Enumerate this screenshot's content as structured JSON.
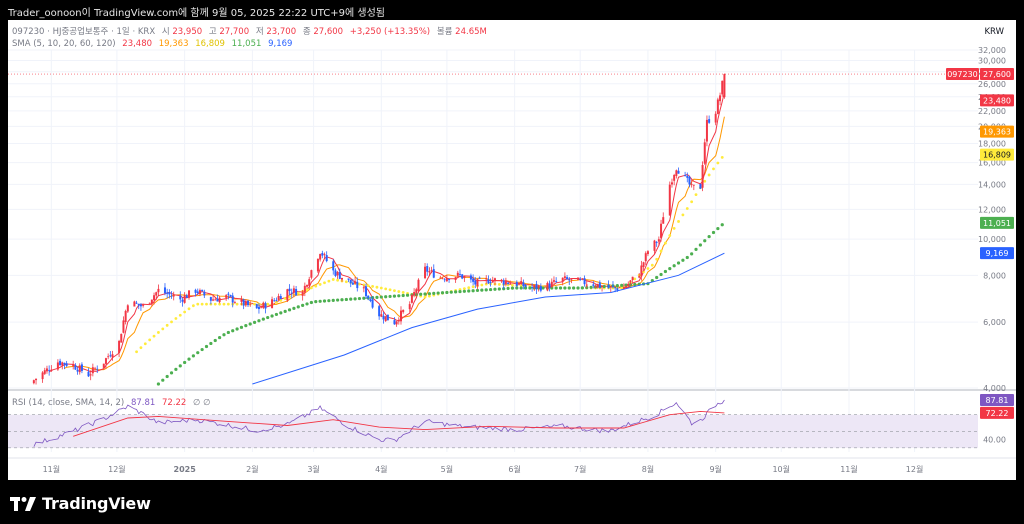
{
  "header": {
    "caption": "Trader_oonoon이 TradingView.com에 함께 9월 05, 2025 22:22 UTC+9에 생성됨"
  },
  "legend": {
    "symbol": "097230",
    "name": "HJ중공업보통주",
    "interval": "1일",
    "exchange": "KRX",
    "open_label": "시",
    "open": "23,950",
    "high_label": "고",
    "high": "27,700",
    "low_label": "저",
    "low": "23,700",
    "close_label": "종",
    "close": "27,600",
    "change": "+3,250 (+13.35%)",
    "volume_label": "볼륨",
    "volume": "24.65M",
    "sma_label": "SMA (5, 10, 20, 60, 120)",
    "sma_values": [
      "23,480",
      "19,363",
      "16,809",
      "11,051",
      "9,169"
    ],
    "rsi_label": "RSI (14, close, SMA, 14, 2)",
    "rsi_values": [
      "87.81",
      "72.22"
    ],
    "rsi_extra": "∅ ∅"
  },
  "currency": "KRW",
  "colors": {
    "up": "#f23645",
    "down": "#2962ff",
    "sma5": "#f23645",
    "sma10": "#ff9800",
    "sma20": "#ffeb3b",
    "sma60": "#4caf50",
    "sma120": "#2962ff",
    "rsi": "#7e57c2",
    "rsi_ma": "#f23645",
    "rsi_band": "#ede7f6"
  },
  "chart_data": {
    "type": "line",
    "y_scale": "log",
    "ylim": [
      4000,
      32000
    ],
    "y_ticks": [
      "4,000",
      "6,000",
      "8,000",
      "10,000",
      "12,000",
      "14,000",
      "16,000",
      "18,000",
      "20,000",
      "22,000",
      "24,000",
      "26,000",
      "28,000",
      "30,000",
      "32,000"
    ],
    "x_ticks": [
      "11월",
      "12월",
      "2025",
      "2월",
      "3월",
      "4월",
      "5월",
      "6월",
      "7월",
      "8월",
      "9월",
      "10월",
      "11월",
      "12월"
    ],
    "price_labels": [
      {
        "text": "097230",
        "badge": "27,600",
        "color": "#f23645"
      },
      {
        "text": "",
        "badge": "23,480",
        "color": "#f23645"
      },
      {
        "text": "",
        "badge": "19,363",
        "color": "#ff9800"
      },
      {
        "text": "",
        "badge": "16,809",
        "color": "#ffeb3b"
      },
      {
        "text": "",
        "badge": "11,051",
        "color": "#4caf50"
      },
      {
        "text": "",
        "badge": "9,169",
        "color": "#2962ff"
      }
    ],
    "price_label_values": [
      27600,
      23480,
      19363,
      16809,
      11051,
      9169
    ],
    "close_series": [
      [
        "2024-10-24",
        4200
      ],
      [
        "2024-11-04",
        4700
      ],
      [
        "2024-11-11",
        4600
      ],
      [
        "2024-11-18",
        4350
      ],
      [
        "2024-11-25",
        4700
      ],
      [
        "2024-12-02",
        5300
      ],
      [
        "2024-12-06",
        6800
      ],
      [
        "2024-12-13",
        6600
      ],
      [
        "2024-12-20",
        7300
      ],
      [
        "2024-12-30",
        6900
      ],
      [
        "2025-01-06",
        7300
      ],
      [
        "2025-01-13",
        6900
      ],
      [
        "2025-01-20",
        7000
      ],
      [
        "2025-02-03",
        6500
      ],
      [
        "2025-02-10",
        6800
      ],
      [
        "2025-02-17",
        7300
      ],
      [
        "2025-02-24",
        7200
      ],
      [
        "2025-03-04",
        9300
      ],
      [
        "2025-03-10",
        8200
      ],
      [
        "2025-03-17",
        7700
      ],
      [
        "2025-03-24",
        7300
      ],
      [
        "2025-03-31",
        6300
      ],
      [
        "2025-04-07",
        6000
      ],
      [
        "2025-04-14",
        6700
      ],
      [
        "2025-04-21",
        8300
      ],
      [
        "2025-04-28",
        7900
      ],
      [
        "2025-05-07",
        8000
      ],
      [
        "2025-05-14",
        7600
      ],
      [
        "2025-05-21",
        7800
      ],
      [
        "2025-06-02",
        7600
      ],
      [
        "2025-06-09",
        7400
      ],
      [
        "2025-06-16",
        7500
      ],
      [
        "2025-06-23",
        7800
      ],
      [
        "2025-06-30",
        7700
      ],
      [
        "2025-07-07",
        7600
      ],
      [
        "2025-07-14",
        7400
      ],
      [
        "2025-07-21",
        7400
      ],
      [
        "2025-07-28",
        8100
      ],
      [
        "2025-08-01",
        9300
      ],
      [
        "2025-08-06",
        10000
      ],
      [
        "2025-08-11",
        14000
      ],
      [
        "2025-08-14",
        15600
      ],
      [
        "2025-08-18",
        14500
      ],
      [
        "2025-08-21",
        13700
      ],
      [
        "2025-08-25",
        13800
      ],
      [
        "2025-08-28",
        20500
      ],
      [
        "2025-09-01",
        22000
      ],
      [
        "2025-09-03",
        24300
      ],
      [
        "2025-09-05",
        27600
      ]
    ],
    "sma20_series": [
      [
        "2024-12-10",
        5000
      ],
      [
        "2025-01-06",
        6700
      ],
      [
        "2025-02-10",
        6700
      ],
      [
        "2025-03-10",
        7800
      ],
      [
        "2025-04-01",
        7400
      ],
      [
        "2025-04-21",
        7000
      ],
      [
        "2025-05-20",
        7600
      ],
      [
        "2025-06-20",
        7400
      ],
      [
        "2025-07-21",
        7400
      ],
      [
        "2025-08-04",
        8600
      ],
      [
        "2025-08-20",
        12300
      ],
      [
        "2025-09-05",
        16809
      ]
    ],
    "sma60_series": [
      [
        "2024-12-20",
        4100
      ],
      [
        "2025-01-20",
        5600
      ],
      [
        "2025-03-01",
        6800
      ],
      [
        "2025-04-01",
        7000
      ],
      [
        "2025-05-01",
        7200
      ],
      [
        "2025-06-01",
        7400
      ],
      [
        "2025-07-01",
        7400
      ],
      [
        "2025-08-01",
        7600
      ],
      [
        "2025-08-20",
        9000
      ],
      [
        "2025-09-05",
        11051
      ]
    ],
    "sma120_series": [
      [
        "2025-02-01",
        4100
      ],
      [
        "2025-03-15",
        4900
      ],
      [
        "2025-04-15",
        5800
      ],
      [
        "2025-05-15",
        6500
      ],
      [
        "2025-06-15",
        7000
      ],
      [
        "2025-07-15",
        7200
      ],
      [
        "2025-08-15",
        8000
      ],
      [
        "2025-09-05",
        9169
      ]
    ],
    "rsi_ticks": [
      "87.81",
      "72.22",
      "40.00"
    ],
    "rsi_series": [
      [
        "2024-10-24",
        34
      ],
      [
        "2024-11-11",
        50
      ],
      [
        "2024-11-25",
        65
      ],
      [
        "2024-12-06",
        80
      ],
      [
        "2024-12-13",
        71
      ],
      [
        "2024-12-20",
        60
      ],
      [
        "2025-01-06",
        64
      ],
      [
        "2025-01-20",
        58
      ],
      [
        "2025-02-03",
        51
      ],
      [
        "2025-02-17",
        58
      ],
      [
        "2025-03-04",
        78
      ],
      [
        "2025-03-17",
        56
      ],
      [
        "2025-03-31",
        40
      ],
      [
        "2025-04-07",
        39
      ],
      [
        "2025-04-21",
        62
      ],
      [
        "2025-05-07",
        56
      ],
      [
        "2025-06-02",
        52
      ],
      [
        "2025-06-23",
        56
      ],
      [
        "2025-07-14",
        50
      ],
      [
        "2025-08-04",
        69
      ],
      [
        "2025-08-14",
        85
      ],
      [
        "2025-08-21",
        60
      ],
      [
        "2025-08-25",
        63
      ],
      [
        "2025-09-01",
        82
      ],
      [
        "2025-09-05",
        87.81
      ]
    ],
    "rsi_ma_series": [
      [
        "2024-11-11",
        44
      ],
      [
        "2024-12-06",
        66
      ],
      [
        "2024-12-20",
        68
      ],
      [
        "2025-01-20",
        62
      ],
      [
        "2025-02-17",
        57
      ],
      [
        "2025-03-10",
        64
      ],
      [
        "2025-03-31",
        55
      ],
      [
        "2025-04-21",
        52
      ],
      [
        "2025-05-20",
        56
      ],
      [
        "2025-06-20",
        54
      ],
      [
        "2025-07-21",
        54
      ],
      [
        "2025-08-11",
        70
      ],
      [
        "2025-08-25",
        74
      ],
      [
        "2025-09-05",
        72.22
      ]
    ]
  },
  "footer": {
    "brand": "TradingView"
  }
}
